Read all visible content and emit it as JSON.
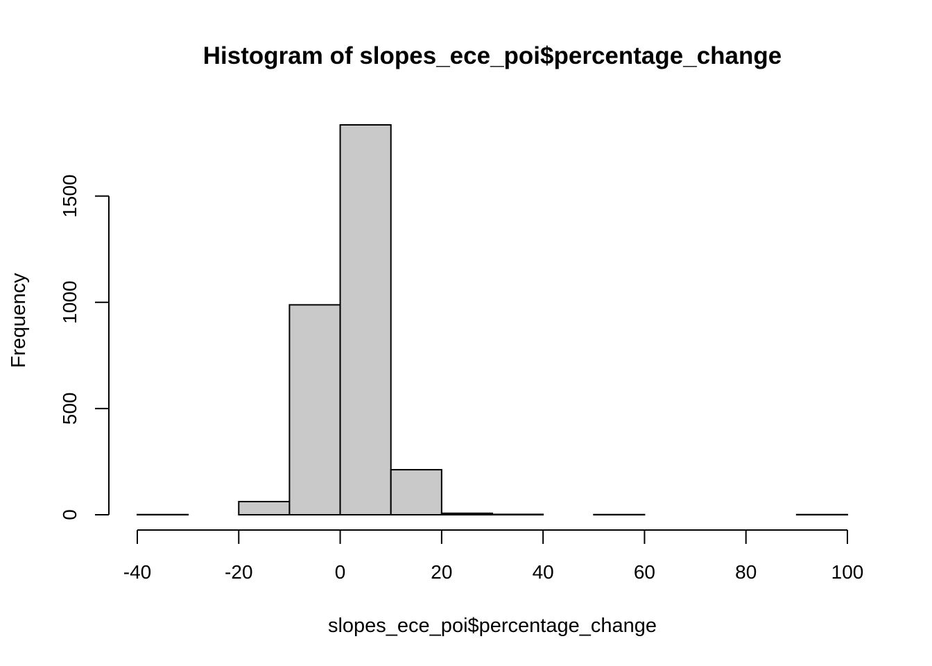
{
  "chart_data": {
    "type": "bar",
    "title": "Histogram of slopes_ece_poi$percentage_change",
    "xlabel": "slopes_ece_poi$percentage_change",
    "ylabel": "Frequency",
    "bin_edges": [
      -40,
      -30,
      -20,
      -10,
      0,
      10,
      20,
      30,
      40,
      50,
      60,
      70,
      80,
      90,
      100
    ],
    "values": [
      1,
      0,
      62,
      988,
      1835,
      212,
      7,
      2,
      0,
      1,
      0,
      0,
      0,
      1
    ],
    "xlim": [
      -40,
      100
    ],
    "ylim": [
      0,
      1835
    ],
    "x_ticks": [
      -40,
      -20,
      0,
      20,
      40,
      60,
      80,
      100
    ],
    "y_ticks": [
      0,
      500,
      1000,
      1500
    ],
    "grid": false,
    "legend": "none",
    "colors": {
      "bar_fill": "#c9c9c9",
      "bar_stroke": "#000000"
    }
  }
}
